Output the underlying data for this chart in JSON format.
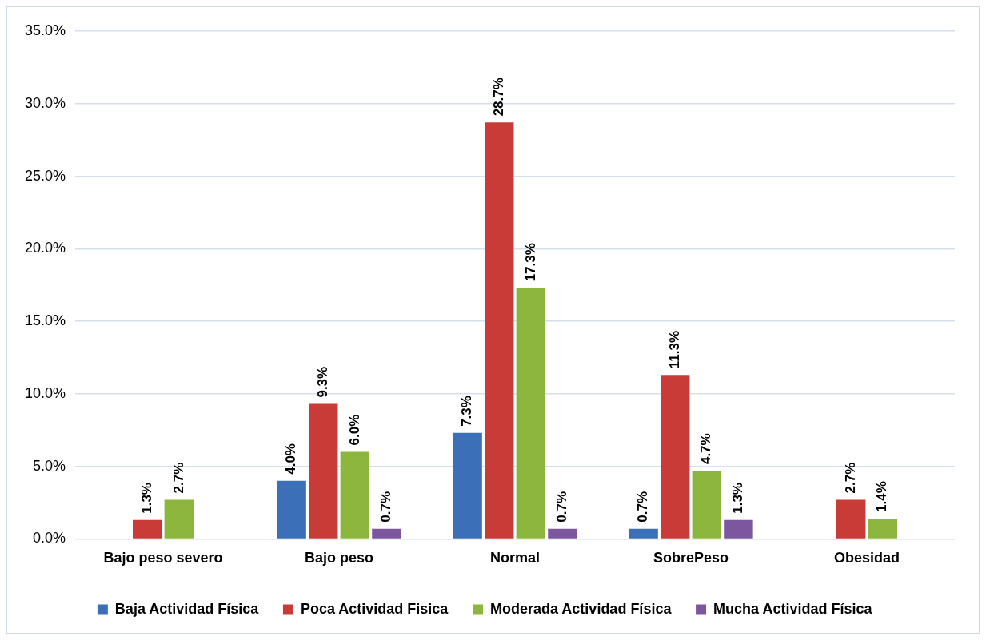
{
  "chart_data": {
    "type": "bar",
    "categories": [
      "Bajo peso severo",
      "Bajo peso",
      "Normal",
      "SobrePeso",
      "Obesidad"
    ],
    "series": [
      {
        "name": "Baja Actividad Física",
        "color": "#3b70b9",
        "values": [
          null,
          4.0,
          7.3,
          0.7,
          null
        ],
        "value_labels": [
          null,
          "4.0%",
          "7.3%",
          "0.7%",
          null
        ]
      },
      {
        "name": "Poca Actividad Fisica",
        "color": "#c93b37",
        "values": [
          1.3,
          9.3,
          28.7,
          11.3,
          2.7
        ],
        "value_labels": [
          "1.3%",
          "9.3%",
          "28.7%",
          "11.3%",
          "2.7%"
        ]
      },
      {
        "name": "Moderada Actividad Física",
        "color": "#8db63f",
        "values": [
          2.7,
          6.0,
          17.3,
          4.7,
          1.4
        ],
        "value_labels": [
          "2.7%",
          "6.0%",
          "17.3%",
          "4.7%",
          "1.4%"
        ]
      },
      {
        "name": "Mucha Actividad Física",
        "color": "#7c569f",
        "values": [
          null,
          0.7,
          0.7,
          1.3,
          null
        ],
        "value_labels": [
          null,
          "0.7%",
          "0.7%",
          "1.3%",
          null
        ]
      }
    ],
    "ylim": [
      0,
      35
    ],
    "yticks": [
      {
        "value": 0,
        "label": "0.0%"
      },
      {
        "value": 5,
        "label": "5.0%"
      },
      {
        "value": 10,
        "label": "10.0%"
      },
      {
        "value": 15,
        "label": "15.0%"
      },
      {
        "value": 20,
        "label": "20.0%"
      },
      {
        "value": 25,
        "label": "25.0%"
      },
      {
        "value": 30,
        "label": "30.0%"
      },
      {
        "value": 35,
        "label": "35.0%"
      }
    ],
    "grid": "y",
    "legend": "bottom"
  }
}
